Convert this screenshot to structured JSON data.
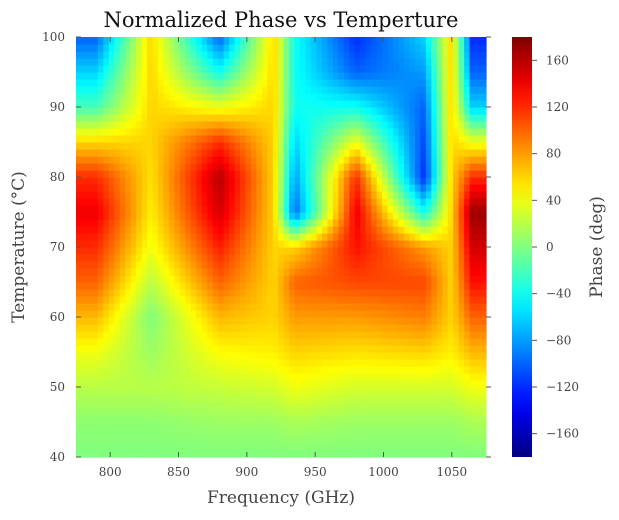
{
  "chart_data": {
    "type": "heatmap",
    "title": "Normalized Phase vs Temperture",
    "xlabel": "Frequency (GHz)",
    "ylabel": "Temperature (°C)",
    "colorbar_label": "Phase (deg)",
    "colormap": "jet",
    "xlim": [
      775,
      1075
    ],
    "ylim": [
      40,
      100
    ],
    "clim": [
      -180,
      180
    ],
    "x_ticks": [
      800,
      850,
      900,
      950,
      1000,
      1050
    ],
    "y_ticks": [
      40,
      50,
      60,
      70,
      80,
      90,
      100
    ],
    "colorbar_ticks": [
      -160,
      -120,
      -80,
      -40,
      0,
      40,
      80,
      120,
      160
    ],
    "x_tick_labels": [
      "800",
      "850",
      "900",
      "950",
      "1000",
      "1050"
    ],
    "y_tick_labels": [
      "40",
      "50",
      "60",
      "70",
      "80",
      "90",
      "100"
    ],
    "colorbar_tick_labels": [
      "−160",
      "−120",
      "−80",
      "−40",
      "0",
      "40",
      "80",
      "120",
      "160"
    ],
    "grid": false,
    "approx_phase_profiles": {
      "temperatures": [
        40,
        45,
        50,
        55,
        60,
        65,
        70,
        75,
        80,
        85,
        90,
        95,
        100
      ],
      "by_frequency": [
        {
          "freq": 790,
          "phase": [
            0,
            5,
            20,
            40,
            70,
            100,
            120,
            140,
            120,
            60,
            -20,
            -60,
            -100
          ]
        },
        {
          "freq": 830,
          "phase": [
            0,
            5,
            20,
            10,
            0,
            20,
            40,
            50,
            55,
            60,
            60,
            60,
            60
          ]
        },
        {
          "freq": 880,
          "phase": [
            0,
            10,
            25,
            45,
            70,
            100,
            125,
            150,
            160,
            120,
            40,
            -40,
            -100
          ]
        },
        {
          "freq": 920,
          "phase": [
            0,
            10,
            30,
            50,
            60,
            60,
            60,
            60,
            60,
            60,
            60,
            60,
            60
          ]
        },
        {
          "freq": 935,
          "phase": [
            0,
            15,
            40,
            60,
            80,
            100,
            60,
            -100,
            -80,
            -60,
            -40,
            -40,
            -40
          ]
        },
        {
          "freq": 980,
          "phase": [
            0,
            10,
            30,
            55,
            80,
            110,
            130,
            140,
            120,
            40,
            -40,
            -100,
            -120
          ]
        },
        {
          "freq": 1030,
          "phase": [
            0,
            10,
            30,
            60,
            90,
            110,
            80,
            -40,
            -120,
            -110,
            -100,
            -80,
            -60
          ]
        },
        {
          "freq": 1050,
          "phase": [
            0,
            10,
            30,
            50,
            60,
            60,
            60,
            60,
            60,
            60,
            60,
            60,
            60
          ]
        },
        {
          "freq": 1065,
          "phase": [
            0,
            15,
            40,
            70,
            100,
            130,
            150,
            170,
            120,
            40,
            -60,
            -100,
            -120
          ]
        }
      ]
    }
  }
}
